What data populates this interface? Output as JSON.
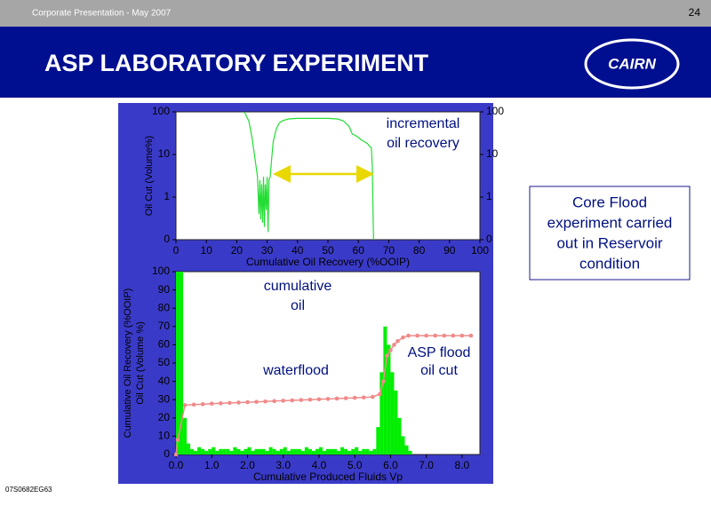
{
  "header": {
    "presentation": "Corporate Presentation -  May 2007",
    "page_number": "24",
    "title": "ASP LABORATORY EXPERIMENT",
    "logo": "CAIRN"
  },
  "chart_data": [
    {
      "type": "line",
      "yscale": "log",
      "color": "#22dd33",
      "xlabel": "Cumulative Oil Recovery (%OOIP)",
      "ylabel": [
        "Oil Cut (Volume%)"
      ],
      "annotations": [
        "incremental",
        "oil recovery"
      ],
      "x": [
        22.5,
        24,
        25,
        26,
        26.8,
        27.3,
        27.6,
        27.9,
        28.2,
        28.5,
        28.8,
        29.1,
        29.4,
        29.7,
        30,
        30.3,
        30.6,
        31,
        31.5,
        32,
        33,
        34,
        35,
        37,
        40,
        45,
        50,
        53,
        55,
        57,
        58,
        59,
        60,
        61,
        62,
        63,
        63.5,
        64,
        64.3,
        64.6,
        65
      ],
      "values": [
        100,
        60,
        25,
        8,
        3,
        0.4,
        2.5,
        0.3,
        2,
        0.25,
        3,
        0.2,
        2,
        0.5,
        3,
        0.15,
        2.5,
        3,
        8,
        20,
        40,
        55,
        62,
        68,
        70,
        70,
        70,
        68,
        62,
        45,
        30,
        28,
        25,
        22,
        20,
        18,
        16,
        15,
        14,
        5,
        0.1
      ],
      "xlim": [
        0,
        100
      ],
      "xticks": [
        0,
        10,
        20,
        30,
        40,
        50,
        60,
        70,
        80,
        90,
        100
      ],
      "ylim": [
        0.1,
        100
      ],
      "yticks": [
        {
          "value": 0.1,
          "label": "0"
        },
        1,
        10,
        100
      ],
      "y2lim": [
        0.1,
        100
      ],
      "y2ticks": [
        {
          "value": 0.1,
          "label": "0"
        },
        1,
        10,
        100
      ]
    },
    {
      "type": "histogram",
      "color": "#00ee00",
      "xlabel": "Cumulative Produced Fluids Vp",
      "ylabel": [
        "Cumulative Oil Recovery (%OOIP)",
        "Oil Cut (Volume %)"
      ],
      "annotations": [
        "cumulative",
        "oil",
        "waterflood",
        "ASP flood",
        "oil cut"
      ],
      "bins": [
        0,
        0.1,
        0.2,
        0.3,
        0.4,
        0.5,
        0.6,
        0.7,
        0.8,
        0.9,
        1,
        1.1,
        1.2,
        1.3,
        1.4,
        1.5,
        1.6,
        1.7,
        1.8,
        1.9,
        2,
        2.1,
        2.2,
        2.3,
        2.4,
        2.5,
        2.6,
        2.7,
        2.8,
        2.9,
        3,
        3.1,
        3.2,
        3.3,
        3.4,
        3.5,
        3.6,
        3.7,
        3.8,
        3.9,
        4,
        4.1,
        4.2,
        4.3,
        4.4,
        4.5,
        4.6,
        4.7,
        4.8,
        4.9,
        5,
        5.1,
        5.2,
        5.3,
        5.4,
        5.5,
        5.6,
        5.7,
        5.8,
        5.9,
        6,
        6.1,
        6.2,
        6.3,
        6.4,
        6.5,
        6.6
      ],
      "values": [
        100,
        100,
        20,
        6,
        3,
        2,
        4,
        3,
        2,
        3,
        4,
        2,
        3,
        3,
        3,
        2,
        4,
        3,
        2,
        3,
        4,
        2,
        3,
        3,
        3,
        2,
        4,
        3,
        2,
        3,
        4,
        2,
        3,
        3,
        3,
        2,
        4,
        3,
        2,
        3,
        4,
        2,
        3,
        3,
        3,
        2,
        4,
        3,
        2,
        3,
        4,
        2,
        3,
        3,
        2,
        3,
        15,
        45,
        70,
        60,
        45,
        35,
        20,
        10,
        5,
        2
      ],
      "line": {
        "color": "#f08a8a",
        "x": [
          0,
          0.05,
          0.25,
          0.5,
          0.75,
          1,
          1.25,
          1.5,
          1.75,
          2,
          2.25,
          2.5,
          2.75,
          3,
          3.25,
          3.5,
          3.75,
          4,
          4.25,
          4.5,
          4.75,
          5,
          5.25,
          5.5,
          5.7,
          5.8,
          5.9,
          6,
          6.1,
          6.2,
          6.35,
          6.5,
          6.75,
          7,
          7.25,
          7.5,
          7.75,
          8,
          8.25
        ],
        "values": [
          0,
          8,
          27,
          27.3,
          27.5,
          27.8,
          28,
          28.2,
          28.4,
          28.6,
          28.8,
          29,
          29.2,
          29.4,
          29.6,
          29.8,
          30,
          30.2,
          30.4,
          30.6,
          30.8,
          31,
          31.2,
          31.5,
          33,
          40,
          54,
          57,
          60,
          62,
          64,
          65,
          65,
          65,
          65,
          65,
          65,
          65,
          65
        ]
      },
      "xlim": [
        0,
        8.5
      ],
      "xticks": [
        {
          "value": 0,
          "label": "0.0"
        },
        {
          "value": 1,
          "label": "1.0"
        },
        {
          "value": 2,
          "label": "2.0"
        },
        {
          "value": 3,
          "label": "3.0"
        },
        {
          "value": 4,
          "label": "4.0"
        },
        {
          "value": 5,
          "label": "5.0"
        },
        {
          "value": 6,
          "label": "6.0"
        },
        {
          "value": 7,
          "label": "7.0"
        },
        {
          "value": 8,
          "label": "8.0"
        }
      ],
      "ylim": [
        0,
        100
      ],
      "yticks": [
        0,
        10,
        20,
        30,
        40,
        50,
        60,
        70,
        80,
        90,
        100
      ]
    }
  ],
  "note": [
    "Core Flood",
    "experiment carried",
    "out in Reservoir",
    "condition"
  ],
  "footer_code": "07S0682EG63"
}
